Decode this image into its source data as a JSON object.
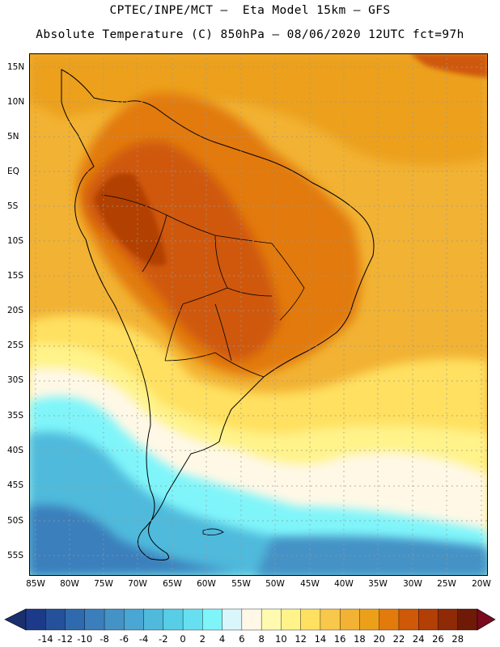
{
  "header": {
    "line1": "CPTEC/INPE/MCT –  Eta Model 15km – GFS",
    "line2": "Absolute Temperature (C) 850hPa – 08/06/2020 12UTC fct=97h"
  },
  "map": {
    "region": "South America",
    "variable": "Absolute Temperature (C)",
    "level": "850hPa",
    "lat_labels": [
      "15N",
      "10N",
      "5N",
      "EQ",
      "5S",
      "10S",
      "15S",
      "20S",
      "25S",
      "30S",
      "35S",
      "40S",
      "45S",
      "50S",
      "55S"
    ],
    "lon_labels": [
      "85W",
      "80W",
      "75W",
      "70W",
      "65W",
      "60W",
      "55W",
      "50W",
      "45W",
      "40W",
      "35W",
      "30W",
      "25W",
      "20W"
    ],
    "gridlines": "dotted"
  },
  "colorbar": {
    "labels": [
      "-14",
      "-12",
      "-10",
      "-8",
      "-6",
      "-4",
      "-2",
      "0",
      "2",
      "4",
      "6",
      "8",
      "10",
      "12",
      "14",
      "16",
      "18",
      "20",
      "22",
      "24",
      "26",
      "28"
    ],
    "colors": [
      "#1d3a8a",
      "#25519a",
      "#2f6aae",
      "#3a7fbc",
      "#4592c6",
      "#4aa6d2",
      "#4fbadc",
      "#58cde6",
      "#66e0f0",
      "#7ff5fa",
      "#d8f6fb",
      "#fff8e6",
      "#fffab0",
      "#fff38a",
      "#ffe060",
      "#f8c84a",
      "#f2b233",
      "#eca01a",
      "#e27a0c",
      "#cf5908",
      "#b23f06",
      "#8e2a06",
      "#6e1a06"
    ],
    "under_color": "#1a2f6e",
    "over_color": "#7a0a1e"
  }
}
